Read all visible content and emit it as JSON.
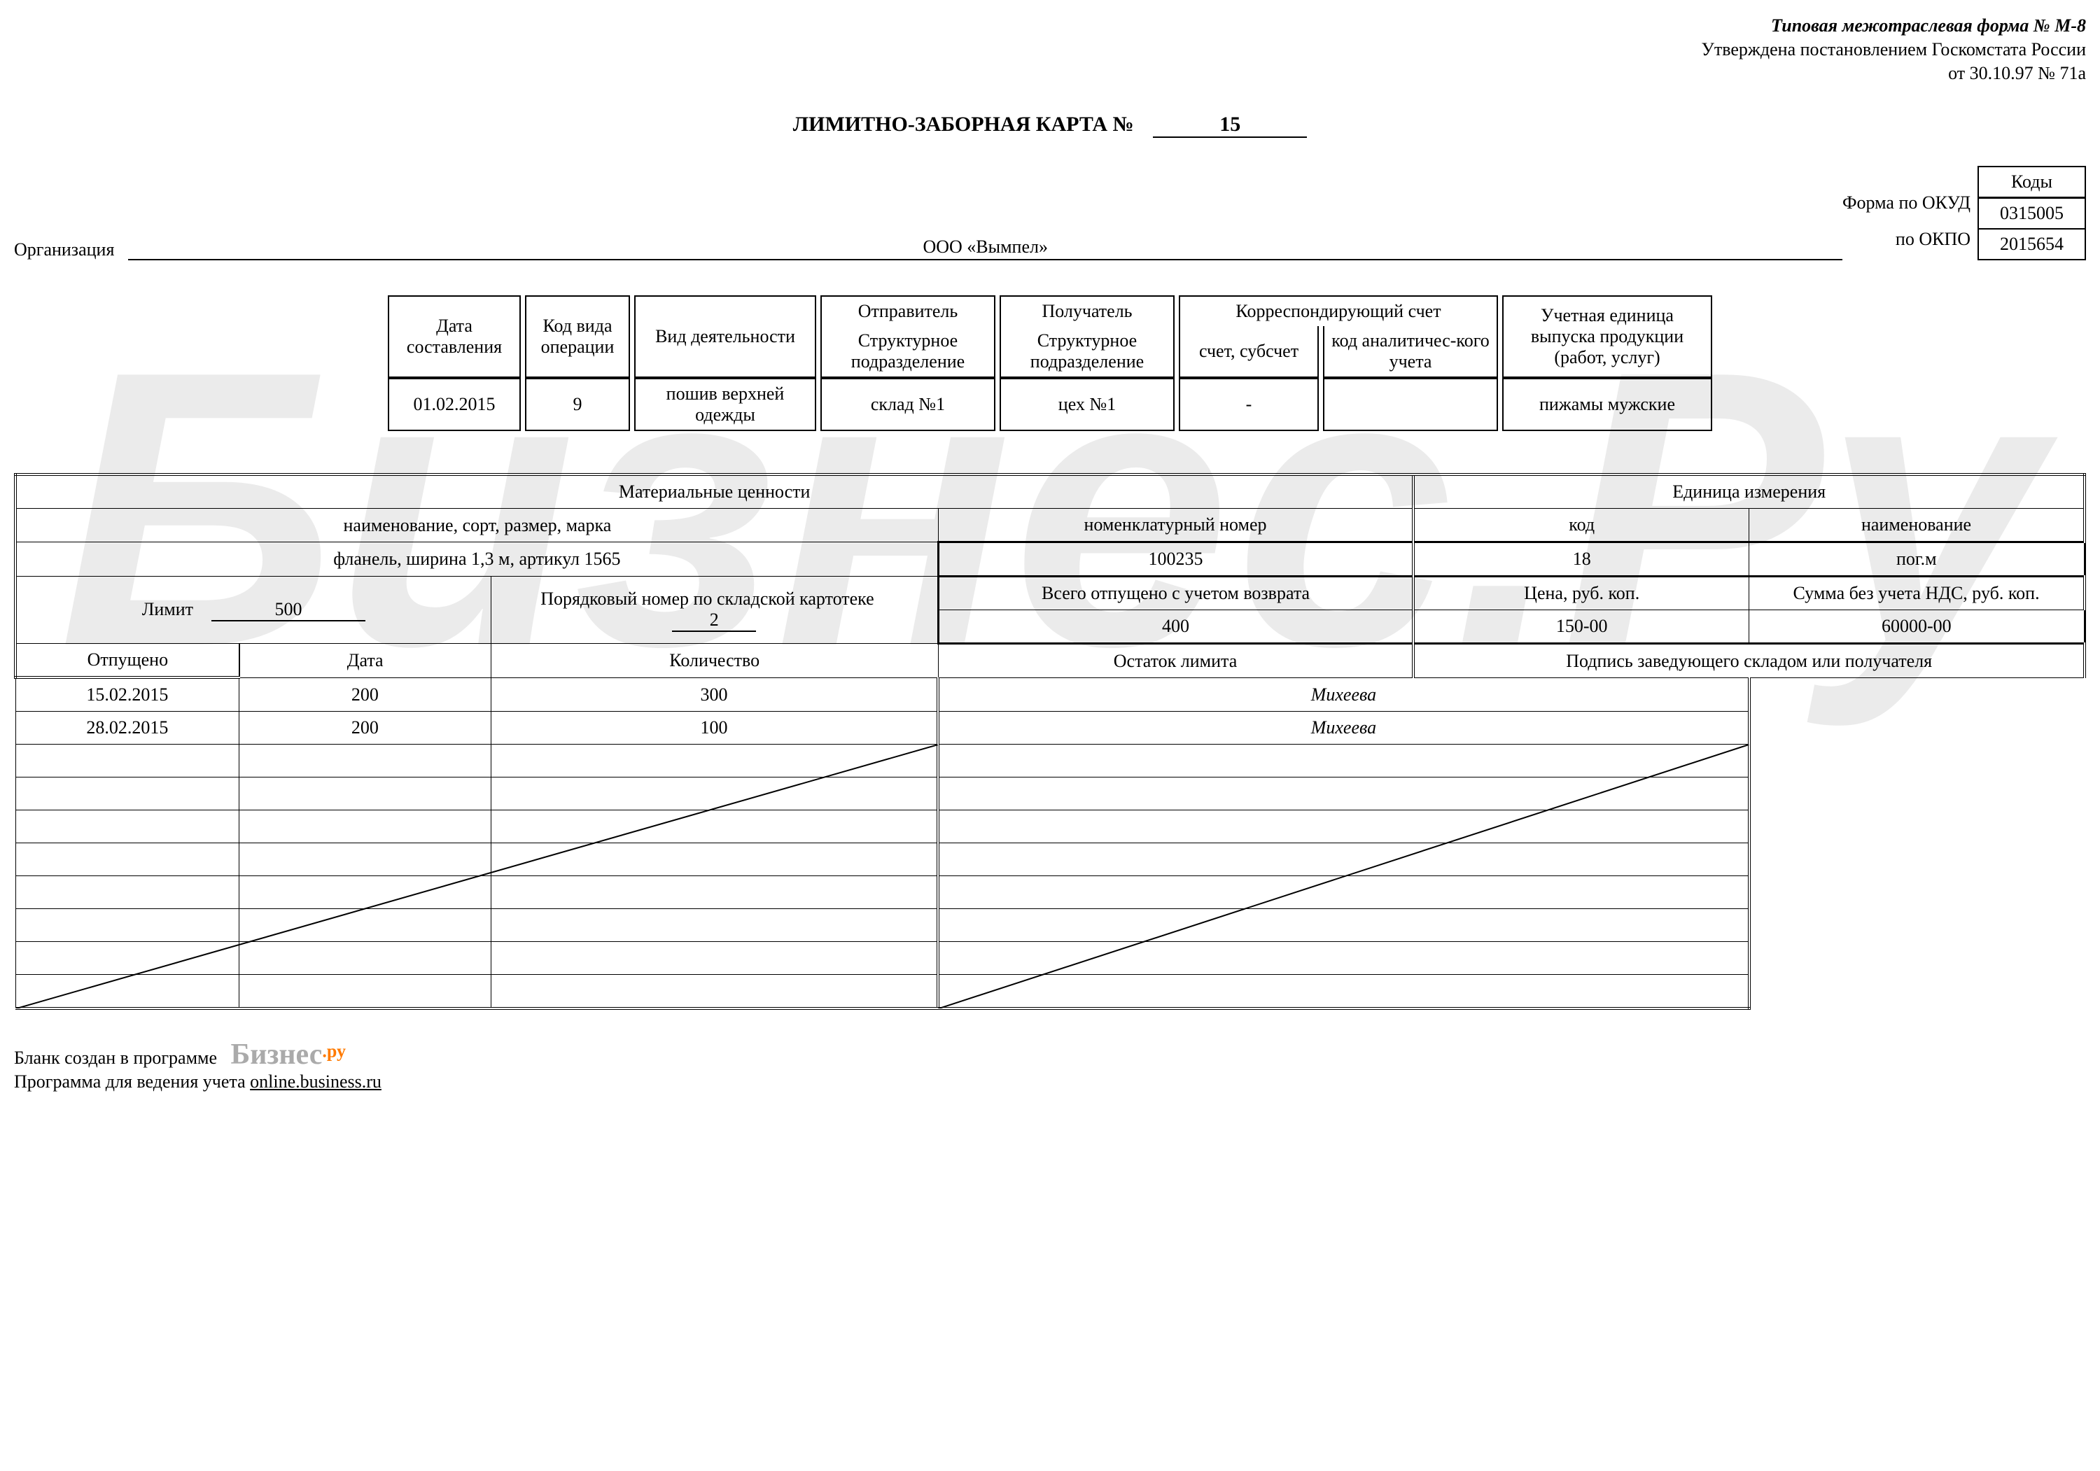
{
  "header": {
    "line1": "Типовая межотраслевая форма № М-8",
    "line2": "Утверждена постановлением Госкомстата России",
    "line3": "от 30.10.97 № 71а"
  },
  "title": "ЛИМИТНО-ЗАБОРНАЯ КАРТА №",
  "doc_number": "15",
  "organization_label": "Организация",
  "organization_value": "ООО «Вымпел»",
  "codes": {
    "title": "Коды",
    "okud_label": "Форма по ОКУД",
    "okud_value": "0315005",
    "okpo_label": "по ОКПО",
    "okpo_value": "2015654"
  },
  "meta": {
    "headers": {
      "date": "Дата составления",
      "op_code": "Код вида операции",
      "activity": "Вид деятельности",
      "sender": "Отправитель",
      "receiver": "Получатель",
      "corr": "Корреспондирующий счет",
      "unit": "Учетная единица выпуска продукции (работ, услуг)",
      "struct": "Структурное подразделение",
      "acct": "счет, субсчет",
      "analytic": "код аналитичес-кого учета"
    },
    "values": {
      "date": "01.02.2015",
      "op_code": "9",
      "activity": "пошив верхней одежды",
      "sender": "склад №1",
      "receiver": "цех №1",
      "acct": "-",
      "analytic": "",
      "unit": "пижамы мужские"
    }
  },
  "main": {
    "mat_values_header": "Материальные ценности",
    "unit_header": "Единица измерения",
    "name_sort": "наименование, сорт, размер, марка",
    "nomen_num": "номенклатурный номер",
    "unit_code": "код",
    "unit_name": "наименование",
    "name_sort_val": "фланель, ширина 1,3 м, артикул 1565",
    "nomen_num_val": "100235",
    "unit_code_val": "18",
    "unit_name_val": "пог.м",
    "limit_label": "Лимит",
    "limit_val": "500",
    "card_index_label": "Порядковый номер по складской картотеке",
    "card_index_val": "2",
    "total_released_label": "Всего отпущено с учетом возврата",
    "price_label": "Цена, руб. коп.",
    "sum_label": "Сумма без учета НДС,    руб. коп.",
    "total_released_val": "400",
    "price_val": "150-00",
    "sum_val": "60000-00",
    "date_col": "Дата",
    "qty_col": "Количество",
    "remain_col": "Остаток лимита",
    "sign_col": "Подпись заведующего складом или получателя",
    "released_label": "Отпущено",
    "rows": [
      {
        "date": "15.02.2015",
        "qty": "200",
        "remain": "300",
        "sign": "Михеева"
      },
      {
        "date": "28.02.2015",
        "qty": "200",
        "remain": "100",
        "sign": "Михеева"
      }
    ],
    "empty_row_count": 8
  },
  "footer": {
    "line1": "Бланк создан в программе",
    "brand": "Бизнес",
    "brand_suffix": ".ру",
    "line2": "Программа для ведения учета",
    "link": "online.business.ru"
  },
  "watermark": "Бизнес.Ру"
}
